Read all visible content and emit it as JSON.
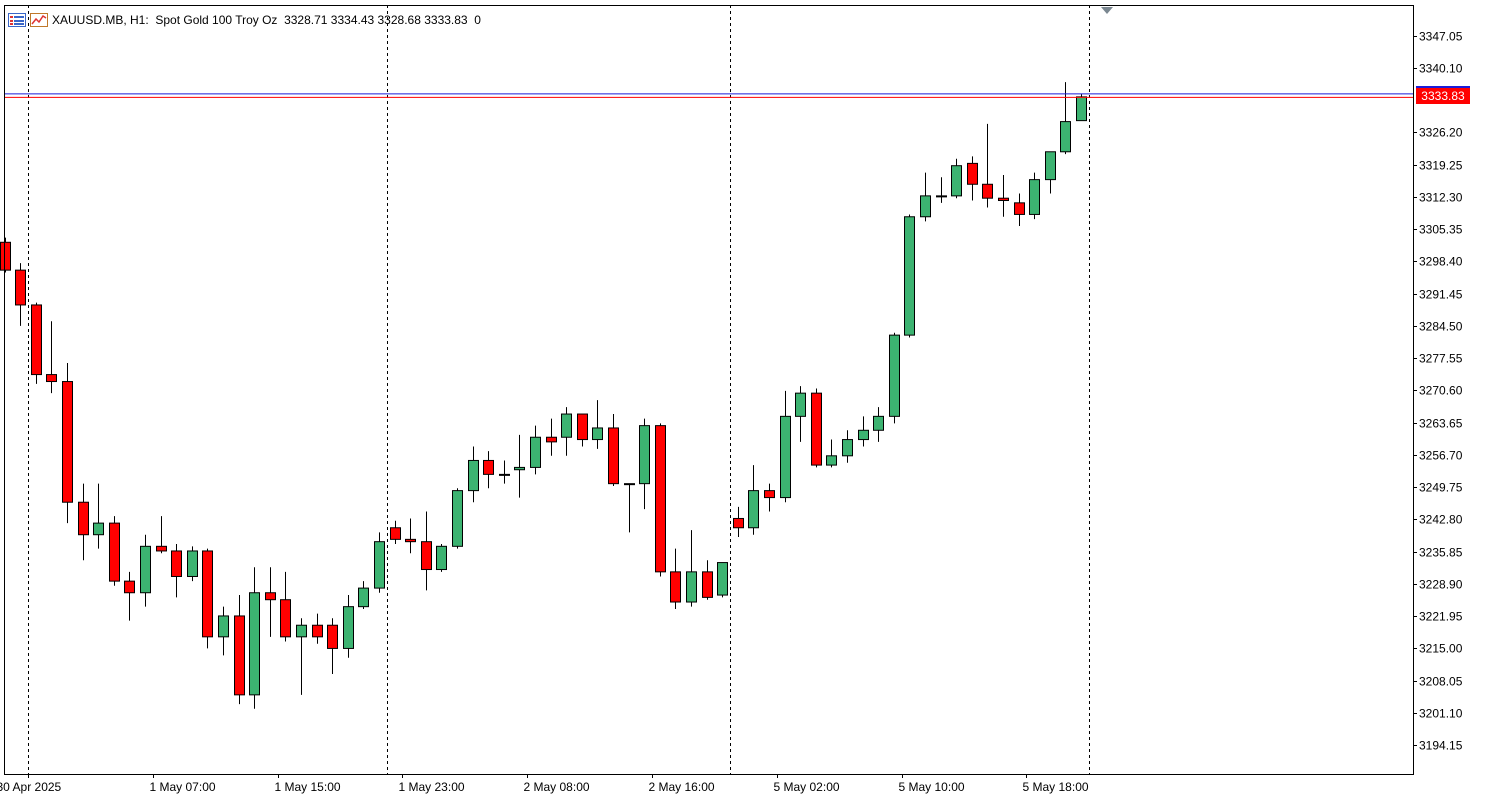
{
  "header": {
    "text": "XAUUSD.MB, H1:  Spot Gold 100 Troy Oz  3328.71 3334.43 3328.68 3333.83  0",
    "icons": [
      "list-icon",
      "chart-icon"
    ]
  },
  "colors": {
    "bull": "#3cb371",
    "bear": "#ff0000",
    "price_line_bid": "#ff0000",
    "price_line_ask": "#1b1bd9",
    "grid": "#000000",
    "axis": "#000000"
  },
  "price_label": "3333.83",
  "chart_data": {
    "type": "candlestick",
    "symbol": "XAUUSD.MB",
    "timeframe": "H1",
    "ylim": [
      3188.5,
      3352.0
    ],
    "y_ticks": [
      "3347.05",
      "3340.10",
      "3326.20",
      "3319.25",
      "3312.30",
      "3305.35",
      "3298.40",
      "3291.45",
      "3284.50",
      "3277.55",
      "3270.60",
      "3263.65",
      "3256.70",
      "3249.75",
      "3242.80",
      "3235.85",
      "3228.90",
      "3221.95",
      "3215.00",
      "3208.05",
      "3201.10",
      "3194.15"
    ],
    "x_ticks": [
      "30 Apr 2025",
      "1 May 07:00",
      "1 May 15:00",
      "1 May 23:00",
      "2 May 08:00",
      "2 May 16:00",
      "5 May 02:00",
      "5 May 10:00",
      "5 May 18:00"
    ],
    "x_tick_index": [
      1.5,
      9.5,
      17.5,
      25.5,
      33.5,
      41.5,
      49.5,
      57.5,
      65.5
    ],
    "separators_index": [
      1.5,
      24.5,
      46.5,
      69.5
    ],
    "current_price": 3333.83,
    "candles": [
      [
        3302.5,
        3303.5,
        3296.0,
        3296.5
      ],
      [
        3296.5,
        3298.0,
        3284.5,
        3289.0
      ],
      [
        3289.0,
        3289.5,
        3272.0,
        3274.0
      ],
      [
        3274.0,
        3285.5,
        3270.0,
        3272.5
      ],
      [
        3272.5,
        3276.5,
        3242.0,
        3246.5
      ],
      [
        3246.5,
        3250.5,
        3234.0,
        3239.5
      ],
      [
        3239.5,
        3250.5,
        3236.5,
        3242.0
      ],
      [
        3242.0,
        3243.5,
        3228.5,
        3229.5
      ],
      [
        3229.5,
        3231.5,
        3221.0,
        3227.0
      ],
      [
        3227.0,
        3239.5,
        3224.0,
        3237.0
      ],
      [
        3237.0,
        3243.5,
        3235.5,
        3236.0
      ],
      [
        3236.0,
        3237.5,
        3226.0,
        3230.5
      ],
      [
        3230.5,
        3237.0,
        3229.5,
        3236.0
      ],
      [
        3236.0,
        3236.5,
        3215.0,
        3217.5
      ],
      [
        3217.5,
        3224.0,
        3213.5,
        3222.0
      ],
      [
        3222.0,
        3226.5,
        3203.0,
        3205.0
      ],
      [
        3205.0,
        3232.5,
        3202.0,
        3227.0
      ],
      [
        3227.0,
        3232.5,
        3217.5,
        3225.5
      ],
      [
        3225.5,
        3231.5,
        3216.5,
        3217.5
      ],
      [
        3217.5,
        3221.5,
        3205.0,
        3220.0
      ],
      [
        3220.0,
        3222.5,
        3216.0,
        3217.5
      ],
      [
        3220.0,
        3221.5,
        3209.5,
        3215.0
      ],
      [
        3215.0,
        3226.5,
        3213.0,
        3224.0
      ],
      [
        3224.0,
        3229.5,
        3223.5,
        3228.0
      ],
      [
        3228.0,
        3240.0,
        3227.0,
        3238.0
      ],
      [
        3241.0,
        3242.5,
        3237.5,
        3238.5
      ],
      [
        3238.5,
        3243.0,
        3235.5,
        3238.0
      ],
      [
        3238.0,
        3244.5,
        3227.5,
        3232.0
      ],
      [
        3232.0,
        3237.5,
        3231.5,
        3237.0
      ],
      [
        3237.0,
        3249.5,
        3236.5,
        3249.0
      ],
      [
        3249.0,
        3258.5,
        3246.5,
        3255.5
      ],
      [
        3255.5,
        3257.5,
        3249.5,
        3252.5
      ],
      [
        3252.5,
        3255.5,
        3250.5,
        3252.5
      ],
      [
        3253.5,
        3261.0,
        3247.5,
        3254.0
      ],
      [
        3254.0,
        3263.0,
        3252.5,
        3260.5
      ],
      [
        3260.5,
        3264.5,
        3256.5,
        3259.5
      ],
      [
        3260.5,
        3267.0,
        3256.5,
        3265.5
      ],
      [
        3265.5,
        3265.5,
        3258.5,
        3260.0
      ],
      [
        3260.0,
        3268.5,
        3258.0,
        3262.5
      ],
      [
        3262.5,
        3265.5,
        3250.0,
        3250.5
      ],
      [
        3250.5,
        3250.5,
        3240.0,
        3250.5
      ],
      [
        3250.5,
        3264.5,
        3245.0,
        3263.0
      ],
      [
        3263.0,
        3263.5,
        3230.5,
        3231.5
      ],
      [
        3231.5,
        3236.5,
        3223.5,
        3225.0
      ],
      [
        3225.0,
        3240.5,
        3224.0,
        3231.5
      ],
      [
        3231.5,
        3234.0,
        3225.5,
        3226.0
      ],
      [
        3226.5,
        3233.5,
        3226.0,
        3233.5
      ],
      [
        3243.0,
        3245.5,
        3239.0,
        3241.0
      ],
      [
        3241.0,
        3254.5,
        3239.5,
        3249.0
      ],
      [
        3249.0,
        3250.5,
        3244.5,
        3247.5
      ],
      [
        3247.5,
        3270.5,
        3246.5,
        3265.0
      ],
      [
        3265.0,
        3271.5,
        3259.5,
        3270.0
      ],
      [
        3270.0,
        3271.0,
        3254.0,
        3254.5
      ],
      [
        3254.5,
        3260.0,
        3254.0,
        3256.5
      ],
      [
        3256.5,
        3262.0,
        3255.0,
        3260.0
      ],
      [
        3260.0,
        3265.0,
        3258.5,
        3262.0
      ],
      [
        3262.0,
        3267.0,
        3259.5,
        3265.0
      ],
      [
        3265.0,
        3283.0,
        3263.5,
        3282.5
      ],
      [
        3282.5,
        3308.5,
        3282.0,
        3308.0
      ],
      [
        3308.0,
        3317.5,
        3307.0,
        3312.5
      ],
      [
        3312.5,
        3316.5,
        3311.0,
        3312.5
      ],
      [
        3312.5,
        3320.5,
        3312.0,
        3319.0
      ],
      [
        3319.5,
        3321.0,
        3311.5,
        3315.0
      ],
      [
        3315.0,
        3328.0,
        3310.0,
        3312.0
      ],
      [
        3312.0,
        3317.0,
        3308.0,
        3311.5
      ],
      [
        3311.0,
        3313.0,
        3306.0,
        3308.5
      ],
      [
        3308.5,
        3317.5,
        3307.5,
        3316.0
      ],
      [
        3316.0,
        3322.0,
        3313.0,
        3322.0
      ],
      [
        3322.0,
        3337.0,
        3321.5,
        3328.5
      ],
      [
        3328.71,
        3334.43,
        3328.68,
        3333.83
      ]
    ]
  }
}
